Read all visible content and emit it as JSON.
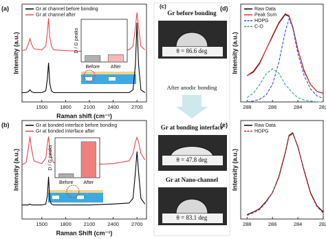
{
  "chart_data": [
    {
      "type": "line",
      "panel_label": "(a)",
      "xlabel": "Raman shift (cm⁻¹)",
      "ylabel": "Intensity (a.u.)",
      "xlim": [
        1250,
        2820
      ],
      "ylim": [
        0,
        10.5
      ],
      "xticks": [
        1500,
        1800,
        2100,
        2400,
        2700
      ],
      "x": [
        1250,
        1300,
        1330,
        1350,
        1370,
        1400,
        1500,
        1550,
        1570,
        1585,
        1600,
        1620,
        1650,
        1800,
        2100,
        2400,
        2600,
        2650,
        2680,
        2700,
        2720,
        2750,
        2800
      ],
      "series": [
        {
          "name": "Gr at channel before bonding",
          "color": "#000000",
          "line_style": "solid",
          "values": [
            1.0,
            1.0,
            1.1,
            1.3,
            1.1,
            1.0,
            1.0,
            1.2,
            2.5,
            4.2,
            2.0,
            1.2,
            1.0,
            1.0,
            1.0,
            1.0,
            1.0,
            1.3,
            4.0,
            8.5,
            4.0,
            1.3,
            1.0
          ]
        },
        {
          "name": "Gr at channel after",
          "color": "#e8474b",
          "line_style": "solid",
          "values": [
            5.5,
            5.6,
            6.2,
            6.8,
            6.2,
            5.7,
            5.6,
            6.0,
            7.5,
            9.0,
            7.0,
            6.0,
            5.6,
            5.5,
            5.4,
            5.5,
            5.6,
            6.0,
            8.0,
            9.6,
            8.0,
            6.0,
            5.6
          ]
        }
      ]
    },
    {
      "type": "bar",
      "ylabel": "D / G peaks",
      "categories": [
        "Before",
        "After"
      ],
      "values": [
        0.15,
        0.17
      ],
      "colors": [
        "#b0b0b0",
        "#f6b8b8"
      ],
      "ylim": [
        0,
        1
      ]
    },
    {
      "type": "line",
      "panel_label": "(b)",
      "xlabel": "Raman Shift (cm⁻¹)",
      "ylabel": "Intensity (a.u.)",
      "xlim": [
        1250,
        2820
      ],
      "ylim": [
        0,
        10.5
      ],
      "xticks": [
        1500,
        1800,
        2100,
        2400,
        2700
      ],
      "x": [
        1250,
        1300,
        1330,
        1350,
        1370,
        1400,
        1500,
        1550,
        1570,
        1585,
        1600,
        1620,
        1650,
        1800,
        2100,
        2400,
        2600,
        2650,
        2680,
        2700,
        2720,
        2750,
        2800
      ],
      "series": [
        {
          "name": "Gr at bonded interface before bonding",
          "color": "#000000",
          "line_style": "solid",
          "values": [
            1.5,
            1.5,
            1.5,
            1.6,
            1.5,
            1.5,
            1.5,
            1.6,
            2.5,
            4.5,
            2.0,
            1.6,
            1.5,
            1.5,
            1.5,
            1.6,
            1.7,
            2.2,
            5.0,
            7.2,
            5.0,
            2.2,
            1.6
          ]
        },
        {
          "name": "Gr at bonded interface after",
          "color": "#e8474b",
          "line_style": "solid",
          "values": [
            5.8,
            6.0,
            7.5,
            8.8,
            7.5,
            6.2,
            5.9,
            6.5,
            8.0,
            8.8,
            7.5,
            6.5,
            6.0,
            5.9,
            5.8,
            5.9,
            6.2,
            7.0,
            8.2,
            8.7,
            8.2,
            7.0,
            6.3
          ]
        }
      ]
    },
    {
      "type": "bar",
      "ylabel": "D / G peaks",
      "categories": [
        "Before",
        "After"
      ],
      "values": [
        0.1,
        0.9
      ],
      "colors": [
        "#b0b0b0",
        "#f08080"
      ],
      "ylim": [
        0,
        1
      ]
    },
    {
      "type": "line",
      "panel_label": "(d)",
      "xlabel": "",
      "ylabel": "Intensity (a.u.)",
      "xlim": [
        288.5,
        282
      ],
      "ylim": [
        0,
        1.12
      ],
      "xticks": [
        288,
        286,
        284,
        282
      ],
      "x": [
        288,
        287.5,
        287,
        286.5,
        286,
        285.5,
        285,
        284.7,
        284.4,
        284,
        283.5,
        283,
        282.5,
        282
      ],
      "series": [
        {
          "name": "Raw Data",
          "color": "#000000",
          "line_style": "solid",
          "values": [
            0.3,
            0.35,
            0.45,
            0.6,
            0.75,
            0.9,
            1.0,
            0.98,
            0.86,
            0.6,
            0.35,
            0.2,
            0.12,
            0.1
          ]
        },
        {
          "name": "Peak Sum",
          "color": "#e8242b",
          "line_style": "solid",
          "values": [
            0.3,
            0.34,
            0.44,
            0.6,
            0.76,
            0.91,
            1.01,
            0.99,
            0.85,
            0.6,
            0.36,
            0.2,
            0.12,
            0.1
          ]
        },
        {
          "name": "HOPG",
          "color": "#2b4fe0",
          "line_style": "dashed",
          "values": [
            0.0,
            0.01,
            0.03,
            0.08,
            0.2,
            0.45,
            0.8,
            0.95,
            0.85,
            0.55,
            0.3,
            0.15,
            0.07,
            0.04
          ]
        },
        {
          "name": "C-O",
          "color": "#2aa88a",
          "line_style": "dashed",
          "values": [
            0.05,
            0.1,
            0.2,
            0.32,
            0.38,
            0.33,
            0.2,
            0.15,
            0.1,
            0.05,
            0.02,
            0.01,
            0.0,
            0.0
          ]
        }
      ]
    },
    {
      "type": "line",
      "panel_label": "(e)",
      "xlabel": "",
      "ylabel": "Intensity (a.u.)",
      "xlim": [
        288.5,
        282
      ],
      "ylim": [
        0,
        1.12
      ],
      "xticks": [
        288,
        286,
        284,
        282
      ],
      "x": [
        288,
        287.5,
        287,
        286.5,
        286,
        285.5,
        285,
        284.7,
        284.4,
        284,
        283.5,
        283,
        282.5,
        282
      ],
      "series": [
        {
          "name": "Raw Data",
          "color": "#000000",
          "line_style": "solid",
          "values": [
            0.05,
            0.08,
            0.12,
            0.2,
            0.3,
            0.48,
            0.75,
            0.95,
            0.98,
            0.82,
            0.55,
            0.3,
            0.15,
            0.08
          ]
        },
        {
          "name": "HOPG",
          "color": "#e8242b",
          "line_style": "dashed",
          "values": [
            0.04,
            0.07,
            0.11,
            0.19,
            0.3,
            0.47,
            0.74,
            0.94,
            0.97,
            0.83,
            0.54,
            0.29,
            0.14,
            0.07
          ]
        }
      ]
    }
  ],
  "panel_c": {
    "label": "(c)",
    "title_1": "Gr before bonding",
    "angle_1": "θ = 86.6 deg",
    "arrow_text": "After anodic bonding",
    "title_2": "Gr at bonding interface",
    "angle_2": "θ = 47.8 deg",
    "title_3": "Gr at Nano-channel",
    "angle_3": "θ = 83.1 deg"
  }
}
